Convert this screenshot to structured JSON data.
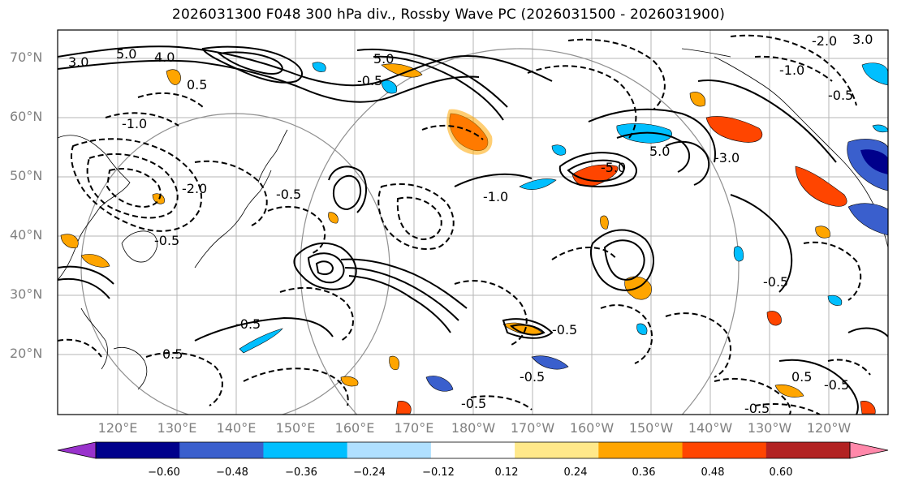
{
  "title": "2026031300 F048 300 hPa div., Rossby Wave PC (2026031500 - 2026031900)",
  "latitude_labels": [
    "70°N",
    "60°N",
    "50°N",
    "40°N",
    "30°N",
    "20°N"
  ],
  "longitude_labels": [
    "120°E",
    "130°E",
    "140°E",
    "150°E",
    "160°E",
    "170°E",
    "180°W",
    "170°W",
    "160°W",
    "150°W",
    "140°W",
    "130°W",
    "120°W"
  ],
  "colorbar": {
    "ticks": [
      "−0.60",
      "−0.48",
      "−0.36",
      "−0.24",
      "−0.12",
      "0.12",
      "0.24",
      "0.36",
      "0.48",
      "0.60"
    ],
    "colors": [
      "#9932cc",
      "#00008b",
      "#3a5fcd",
      "#00bfff",
      "#b0e0ff",
      "#ffffff",
      "#ffe88a",
      "#ffa500",
      "#ff4500",
      "#b22222",
      "#ff88aa"
    ]
  },
  "contour_labels": [
    "3.0",
    "5.0",
    "4.0",
    "5.0",
    "-2.0",
    "3.0",
    "-1.0",
    "-0.5",
    "0.5",
    "-1.0",
    "-0.5",
    "-0.5",
    "-1.0",
    "-2.0",
    "5.0",
    "-5.0",
    "-3.0",
    "-0.5",
    "0.5",
    "-0.5",
    "-0.5",
    "-0.5",
    "-0.5",
    "-0.5",
    "-0.5",
    "0.5",
    "-0.5"
  ]
}
